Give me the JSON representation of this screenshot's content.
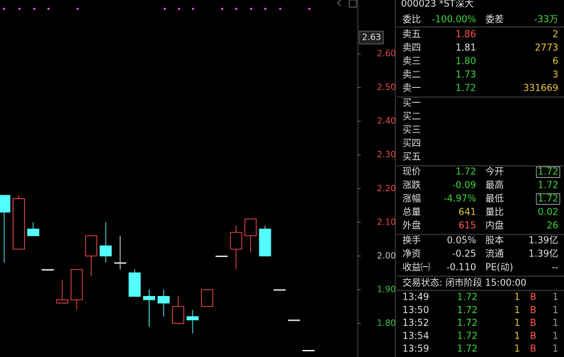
{
  "chart_data": {
    "type": "candlestick",
    "ylim": [
      1.7,
      2.76
    ],
    "yticks": [
      {
        "value": 1.8,
        "label": "1.80"
      },
      {
        "value": 1.9,
        "label": "1.90"
      },
      {
        "value": 2.0,
        "label": "2.00"
      },
      {
        "value": 2.1,
        "label": "2.10"
      },
      {
        "value": 2.2,
        "label": "2.20"
      },
      {
        "value": 2.3,
        "label": "2.30"
      },
      {
        "value": 2.4,
        "label": "2.40"
      },
      {
        "value": 2.5,
        "label": "2.50"
      },
      {
        "value": 2.6,
        "label": "2.60"
      }
    ],
    "up_color": "#ff4d4d",
    "down_color": "#54ffff",
    "open": [
      2.18,
      2.02,
      2.08,
      1.96,
      1.86,
      1.87,
      2.0,
      2.03,
      1.98,
      1.95,
      1.88,
      1.88,
      1.8,
      1.82,
      1.85,
      2.0,
      2.02,
      2.06,
      2.08,
      1.9,
      1.81,
      1.72
    ],
    "high": [
      2.18,
      2.18,
      2.1,
      1.96,
      1.93,
      1.96,
      2.06,
      2.1,
      2.06,
      1.96,
      1.9,
      1.9,
      1.88,
      1.84,
      1.9,
      2.0,
      2.09,
      2.11,
      2.09,
      1.9,
      1.81,
      1.72
    ],
    "low": [
      1.98,
      2.02,
      2.06,
      1.96,
      1.86,
      1.84,
      1.94,
      1.98,
      1.96,
      1.88,
      1.79,
      1.82,
      1.8,
      1.77,
      1.85,
      2.0,
      1.96,
      2.01,
      2.0,
      1.9,
      1.81,
      1.72
    ],
    "close": [
      2.13,
      2.17,
      2.06,
      1.96,
      1.87,
      1.96,
      2.06,
      2.0,
      1.98,
      1.88,
      1.87,
      1.86,
      1.85,
      1.81,
      1.9,
      2.0,
      2.07,
      2.11,
      2.0,
      1.9,
      1.81,
      1.72
    ],
    "cursor_label": "2.63"
  },
  "header": "000023 *ST深大",
  "summary": [
    "委比",
    "-100.00%",
    "委差",
    "-33万"
  ],
  "asks": [
    [
      "卖五",
      "1.86",
      "2"
    ],
    [
      "卖四",
      "1.81",
      "2773"
    ],
    [
      "卖三",
      "1.80",
      "6"
    ],
    [
      "卖二",
      "1.73",
      "3"
    ],
    [
      "卖一",
      "1.72",
      "331669"
    ]
  ],
  "bids": [
    "买一",
    "买二",
    "买三",
    "买四",
    "买五"
  ],
  "stats": [
    [
      "现价",
      "1.72",
      "今开",
      "1.72"
    ],
    [
      "涨跌",
      "-0.09",
      "最高",
      "1.72"
    ],
    [
      "涨幅",
      "-4.97%",
      "最低",
      "1.72"
    ],
    [
      "总量",
      "641",
      "量比",
      "0.02"
    ],
    [
      "外盘",
      "615",
      "内盘",
      "26"
    ]
  ],
  "finance": [
    [
      "换手",
      "0.05%",
      "股本",
      "1.39亿"
    ],
    [
      "净资",
      "-0.25",
      "流通",
      "1.39亿"
    ],
    [
      "收益㈠",
      "-0.110",
      "PE(动)",
      "--"
    ]
  ],
  "status": "交易状态: 闭市阶段 15:00:00",
  "trades": [
    [
      "13:49",
      "1.72",
      "1",
      "B",
      "1"
    ],
    [
      "13:50",
      "1.72",
      "1",
      "B",
      "1"
    ],
    [
      "13:52",
      "1.72",
      "1",
      "B",
      "1"
    ],
    [
      "13:54",
      "1.72",
      "1",
      "B",
      "1"
    ],
    [
      "13:59",
      "1.72",
      "1",
      "B",
      "1"
    ]
  ]
}
